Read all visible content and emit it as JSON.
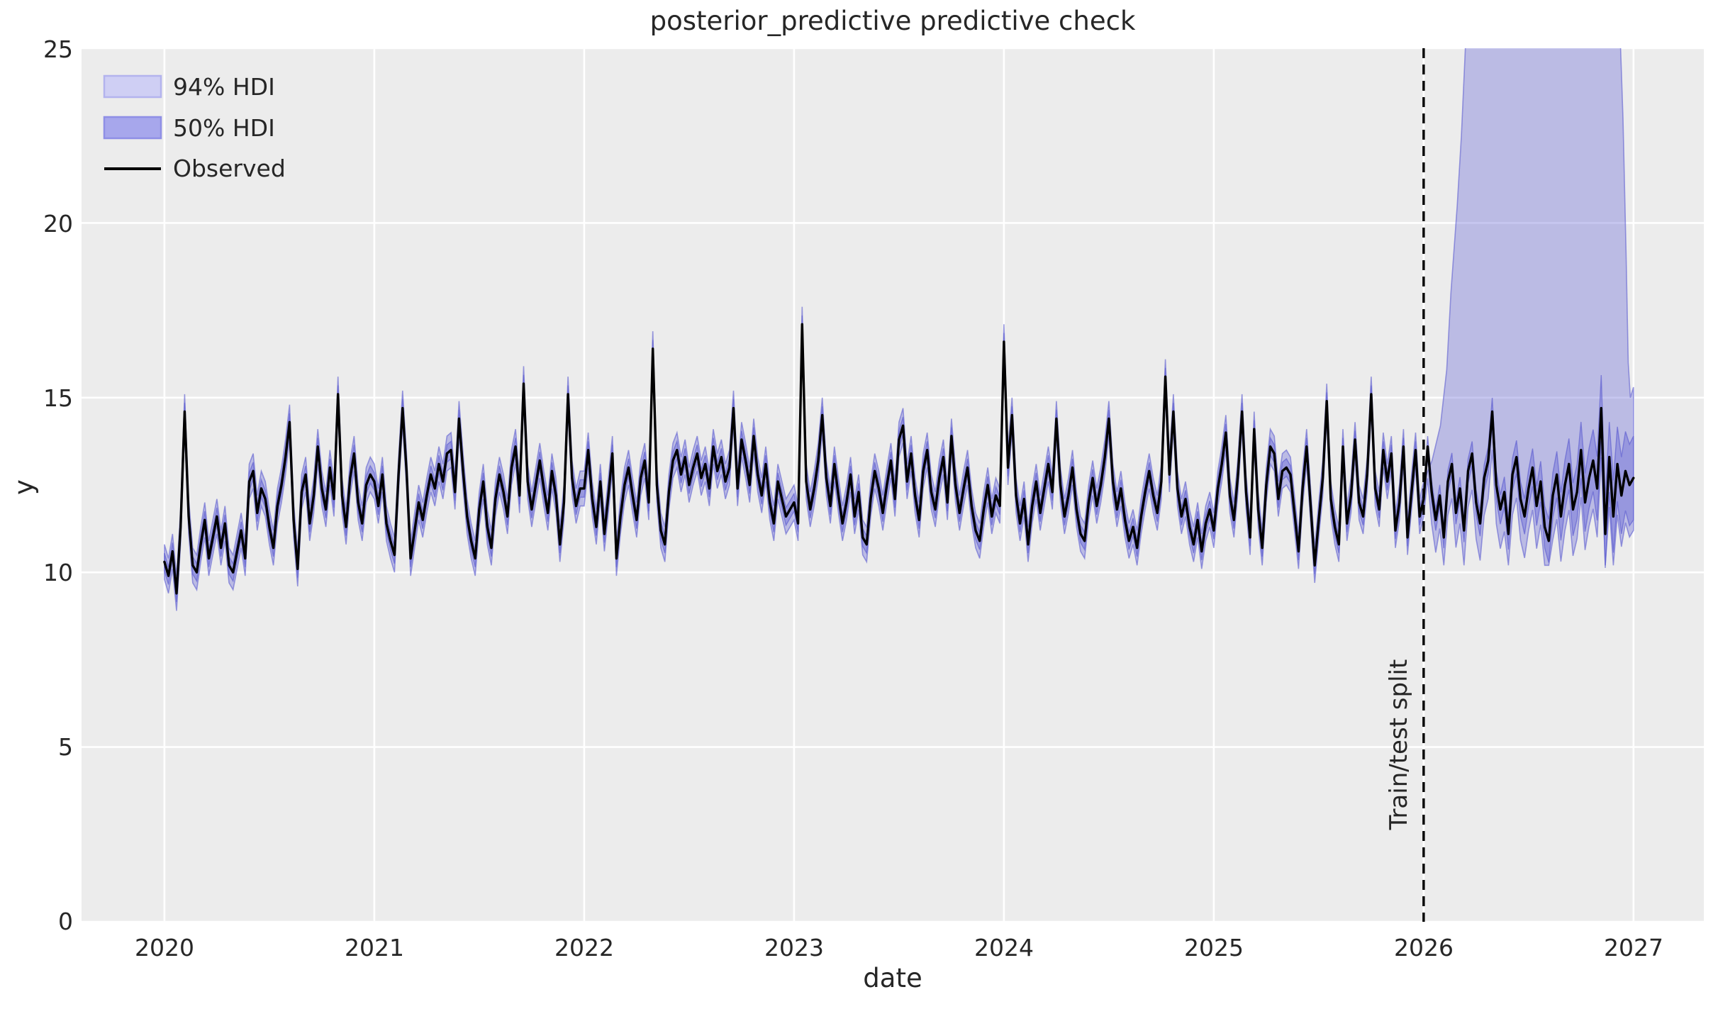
{
  "title": "posterior_predictive predictive check",
  "axes": {
    "xlabel": "date",
    "ylabel": "y",
    "x_ticks": [
      "2020",
      "2021",
      "2022",
      "2023",
      "2024",
      "2025",
      "2026",
      "2027"
    ],
    "y_ticks": [
      "0",
      "5",
      "10",
      "15",
      "20",
      "25"
    ]
  },
  "legend": {
    "items": [
      {
        "label": "94% HDI",
        "type": "patch",
        "fill": "#cfcff4",
        "edge": "#b3b3ee"
      },
      {
        "label": "50% HDI",
        "type": "patch",
        "fill": "#a7a7ec",
        "edge": "#8f8fe6"
      },
      {
        "label": "Observed",
        "type": "line",
        "color": "#000000"
      }
    ]
  },
  "annotations": {
    "split_label": "Train/test split"
  },
  "colors": {
    "figure_bg": "#ffffff",
    "axes_bg": "#ececec",
    "grid": "#ffffff",
    "observed": "#000000",
    "band": "#6d6dd8",
    "band_fill_opacity": 0.38,
    "band_edge": "#5e5ed0",
    "split_line": "#000000",
    "title_text": "#262626",
    "tick_text": "#3b3b3b"
  },
  "chart_data": {
    "type": "line",
    "title": "posterior_predictive predictive check",
    "xlabel": "date",
    "ylabel": "y",
    "xlim": [
      2019.605,
      2027.335
    ],
    "ylim": [
      0,
      25
    ],
    "x_tick_years": [
      2020,
      2021,
      2022,
      2023,
      2024,
      2025,
      2026,
      2027
    ],
    "y_tick_values": [
      0,
      5,
      10,
      15,
      20,
      25
    ],
    "grid": true,
    "legend_position": "upper left",
    "split_x": 2026.0,
    "x_start": 2020.0,
    "points_per_year": 52,
    "series": [
      {
        "name": "Observed",
        "color": "#000000",
        "values": [
          10.3,
          9.9,
          10.6,
          9.4,
          11.3,
          14.6,
          11.6,
          10.2,
          10.0,
          10.8,
          11.5,
          10.4,
          11.0,
          11.6,
          10.7,
          11.4,
          10.2,
          10.0,
          10.6,
          11.2,
          10.4,
          12.6,
          12.9,
          11.7,
          12.4,
          12.1,
          11.3,
          10.7,
          11.9,
          12.5,
          13.3,
          14.3,
          11.5,
          10.1,
          12.3,
          12.8,
          11.4,
          12.2,
          13.6,
          12.4,
          11.8,
          13.0,
          12.1,
          15.1,
          12.2,
          11.3,
          12.7,
          13.4,
          12.0,
          11.4,
          12.5,
          12.8,
          12.6,
          11.9,
          12.8,
          11.4,
          10.9,
          10.5,
          12.8,
          14.7,
          12.9,
          10.4,
          11.2,
          12.0,
          11.5,
          12.2,
          12.8,
          12.4,
          13.1,
          12.6,
          13.4,
          13.5,
          12.3,
          14.4,
          12.9,
          11.6,
          10.9,
          10.4,
          11.8,
          12.6,
          11.3,
          10.7,
          12.1,
          12.8,
          12.3,
          11.6,
          13.0,
          13.6,
          12.2,
          15.4,
          12.6,
          11.8,
          12.5,
          13.2,
          12.4,
          11.7,
          12.9,
          12.2,
          10.8,
          12.0,
          15.1,
          12.7,
          11.9,
          12.4,
          12.4,
          13.5,
          12.1,
          11.3,
          12.6,
          11.1,
          12.2,
          13.4,
          10.4,
          11.6,
          12.5,
          13.0,
          12.2,
          11.5,
          12.7,
          13.2,
          12.0,
          16.4,
          12.5,
          11.2,
          10.8,
          12.3,
          13.2,
          13.5,
          12.8,
          13.3,
          12.5,
          13.0,
          13.4,
          12.7,
          13.1,
          12.4,
          13.6,
          12.9,
          13.3,
          12.6,
          13.0,
          14.7,
          12.4,
          13.8,
          13.2,
          12.5,
          13.9,
          12.8,
          12.2,
          13.1,
          12.0,
          11.4,
          12.6,
          12.1,
          11.6,
          11.8,
          12.0,
          11.4,
          17.1,
          12.6,
          11.8,
          12.4,
          13.2,
          14.5,
          12.7,
          11.9,
          13.1,
          12.2,
          11.4,
          12.0,
          12.8,
          11.6,
          12.3,
          11.0,
          10.8,
          12.1,
          12.9,
          12.4,
          11.7,
          12.5,
          13.2,
          12.1,
          13.8,
          14.2,
          12.6,
          13.4,
          12.2,
          11.5,
          12.9,
          13.5,
          12.3,
          11.8,
          12.7,
          13.3,
          12.0,
          13.9,
          12.5,
          11.7,
          12.4,
          13.0,
          11.9,
          11.2,
          10.9,
          11.8,
          12.5,
          11.6,
          12.2,
          11.9,
          16.6,
          13.0,
          14.5,
          12.2,
          11.4,
          12.1,
          10.8,
          11.9,
          12.6,
          11.7,
          12.4,
          13.1,
          12.3,
          14.4,
          12.5,
          11.6,
          12.2,
          13.0,
          11.8,
          11.1,
          10.9,
          12.0,
          12.7,
          11.9,
          12.5,
          13.3,
          14.4,
          12.6,
          11.8,
          12.4,
          11.5,
          10.9,
          11.3,
          10.7,
          11.6,
          12.3,
          12.9,
          12.2,
          11.7,
          12.6,
          15.6,
          12.8,
          14.6,
          12.4,
          11.6,
          12.1,
          11.3,
          10.8,
          11.5,
          10.6,
          11.4,
          11.8,
          11.2,
          12.4,
          13.1,
          14.0,
          12.2,
          11.5,
          12.8,
          14.6,
          12.3,
          11.0,
          14.1,
          11.8,
          10.7,
          12.5,
          13.6,
          13.4,
          12.1,
          12.9,
          13.0,
          12.8,
          11.7,
          10.6,
          12.4,
          13.6,
          11.9,
          10.2,
          11.5,
          12.7,
          14.9,
          12.1,
          11.3,
          10.8,
          13.6,
          11.4,
          12.2,
          13.8,
          12.0,
          11.6,
          12.8,
          15.1,
          12.4,
          11.8,
          13.5,
          12.6,
          13.4,
          11.2,
          12.0,
          13.6,
          11.0,
          12.3,
          13.5,
          11.6,
          12.1,
          13.6,
          12.3,
          11.5,
          12.2,
          11.0,
          12.6,
          13.1,
          11.7,
          12.4,
          11.2,
          12.9,
          13.4,
          12.0,
          11.4,
          12.7,
          13.2,
          14.6,
          12.5,
          11.8,
          12.3,
          11.1,
          12.8,
          13.3,
          12.1,
          11.6,
          12.4,
          13.0,
          11.9,
          12.6,
          11.3,
          10.9,
          12.2,
          12.8,
          11.6,
          12.5,
          13.1,
          11.8,
          12.3,
          13.5,
          12.0,
          12.7,
          13.2,
          12.4,
          14.7,
          11.1,
          13.3,
          11.6,
          13.1,
          12.2,
          12.9,
          12.5,
          12.7
        ]
      }
    ],
    "hdi94": {
      "label": "94% HDI",
      "train_halfwidth": 0.5,
      "test_lower_offset_start": 0.9,
      "test_lower_offset_end": 1.5,
      "test_lower_floor": 10.2,
      "test_upper_anchors": [
        [
          2026.0,
          12.6
        ],
        [
          2026.04,
          13.2
        ],
        [
          2026.08,
          14.2
        ],
        [
          2026.11,
          15.8
        ],
        [
          2026.13,
          18.0
        ],
        [
          2026.16,
          20.5
        ],
        [
          2026.18,
          22.5
        ],
        [
          2026.21,
          26.5
        ],
        [
          2026.93,
          26.5
        ],
        [
          2026.95,
          23.0
        ],
        [
          2026.965,
          19.0
        ],
        [
          2026.975,
          16.0
        ],
        [
          2026.985,
          15.0
        ],
        [
          2027.0,
          15.3
        ]
      ]
    },
    "hdi50": {
      "label": "50% HDI",
      "train_halfwidth": 0.25,
      "test_halfwidth_start": 0.3,
      "test_halfwidth_growth": 0.9
    }
  }
}
